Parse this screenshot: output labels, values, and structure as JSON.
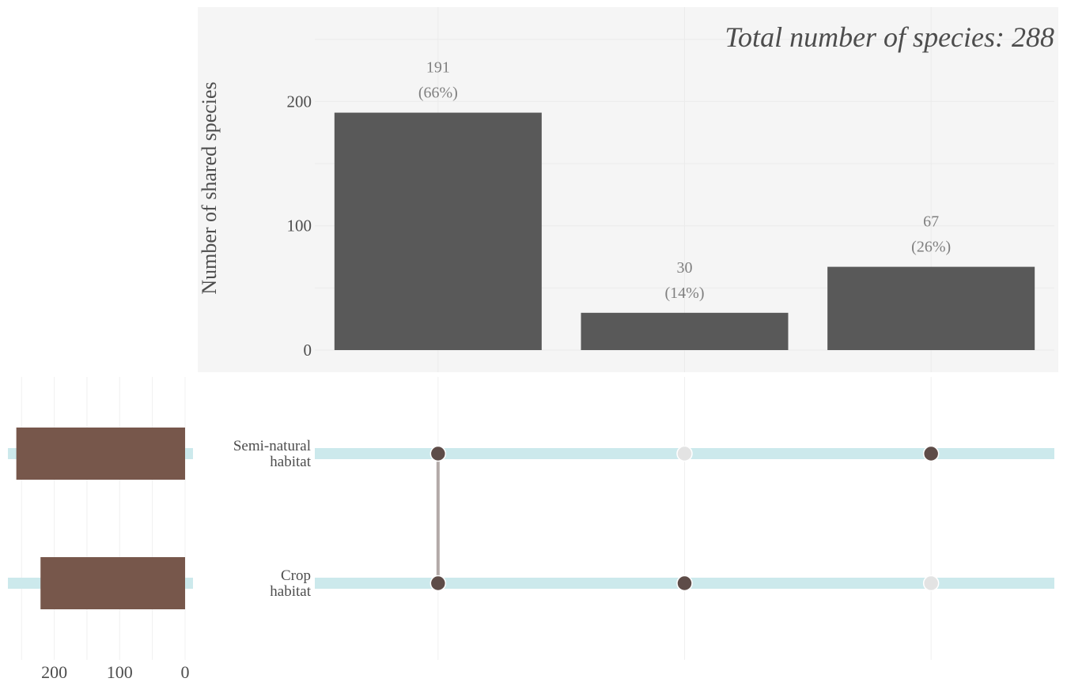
{
  "chart_data": {
    "type": "upset",
    "title": "Total number of species: 288",
    "ylabel": "Number of shared species",
    "ylim": [
      0,
      250
    ],
    "yticks": [
      0,
      100,
      200
    ],
    "intersections": [
      {
        "value": 191,
        "value_label": "191",
        "pct_label": "(66%)",
        "sets": [
          "Semi-natural habitat",
          "Crop habitat"
        ]
      },
      {
        "value": 30,
        "value_label": "30",
        "pct_label": "(14%)",
        "sets": [
          "Crop habitat"
        ]
      },
      {
        "value": 67,
        "value_label": "67",
        "pct_label": "(26%)",
        "sets": [
          "Semi-natural habitat"
        ]
      }
    ],
    "sets": [
      {
        "name_lines": [
          "Semi-natural",
          "habitat"
        ],
        "key": "Semi-natural habitat",
        "size": 258
      },
      {
        "name_lines": [
          "Crop",
          "habitat"
        ],
        "key": "Crop habitat",
        "size": 221
      }
    ],
    "set_size_xlim": [
      0,
      270
    ],
    "set_size_ticks": [
      200,
      100,
      0
    ],
    "colors": {
      "bar": "#595959",
      "set_bar": "#77574b",
      "dot_on": "#5e4c48",
      "dot_off": "#e3e3e3",
      "connector": "#b3aaa8",
      "stripe": "#cce9ec",
      "panel_bg": "#f5f5f5",
      "grid": "#ebebeb",
      "grid_bottom": "#f0f0f0",
      "text": "#4d4d4d",
      "label": "#7f7f7f"
    }
  }
}
